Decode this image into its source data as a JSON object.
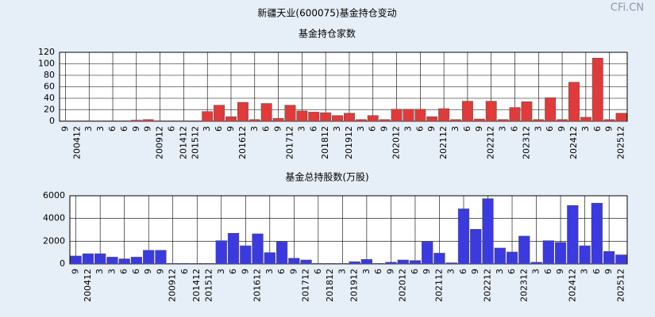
{
  "header": {
    "title": "新疆天业(600075)基金持仓变动",
    "watermark": "CFi.CN"
  },
  "chart_data": [
    {
      "type": "bar",
      "title": "基金持仓家数",
      "color": "#e03a3a",
      "grid": true,
      "categories": [
        "9",
        "200412",
        "3",
        "3",
        "6",
        "6",
        "9",
        "9",
        "200912",
        "6",
        "201412",
        "201512",
        "3",
        "6",
        "9",
        "201612",
        "3",
        "6",
        "9",
        "201712",
        "3",
        "6",
        "201812",
        "3",
        "201912",
        "3",
        "6",
        "9",
        "202012",
        "3",
        "6",
        "9",
        "202112",
        "3",
        "6",
        "9",
        "202212",
        "3",
        "6",
        "202312",
        "3",
        "6",
        "9",
        "202412",
        "3",
        "6",
        "9",
        "202512"
      ],
      "values": [
        1,
        1,
        1,
        1,
        1,
        1,
        2,
        3,
        1,
        1,
        1,
        1,
        17,
        28,
        8,
        33,
        3,
        31,
        5,
        28,
        18,
        16,
        15,
        10,
        14,
        3,
        10,
        3,
        21,
        21,
        21,
        8,
        22,
        3,
        35,
        4,
        35,
        3,
        24,
        34,
        3,
        41,
        3,
        68,
        7,
        110,
        3,
        14
      ],
      "ylim": [
        0,
        120
      ],
      "yticks": [
        0,
        20,
        40,
        60,
        80,
        100,
        120
      ]
    },
    {
      "type": "bar",
      "title": "基金总持股数(万股)",
      "color": "#3a3ae0",
      "grid": true,
      "categories": [
        "9",
        "200412",
        "3",
        "3",
        "6",
        "6",
        "9",
        "9",
        "200912",
        "6",
        "201412",
        "201512",
        "3",
        "6",
        "9",
        "201612",
        "3",
        "6",
        "9",
        "201712",
        "6",
        "201812",
        "3",
        "201912",
        "3",
        "6",
        "9",
        "202012",
        "6",
        "9",
        "202112",
        "3",
        "6",
        "9",
        "202212",
        "3",
        "6",
        "202312",
        "3",
        "6",
        "9",
        "202412",
        "3",
        "6",
        "9",
        "202512"
      ],
      "values": [
        700,
        900,
        900,
        600,
        450,
        600,
        1200,
        1200,
        50,
        50,
        50,
        50,
        2050,
        2700,
        1600,
        2650,
        1000,
        1950,
        500,
        350,
        50,
        50,
        50,
        200,
        400,
        50,
        150,
        350,
        300,
        1950,
        950,
        100,
        4850,
        3050,
        5750,
        1400,
        1050,
        2450,
        150,
        2050,
        1900,
        5150,
        1600,
        5350,
        1100,
        800
      ],
      "ylim": [
        0,
        6000
      ],
      "yticks": [
        0,
        2000,
        4000,
        6000
      ]
    }
  ]
}
